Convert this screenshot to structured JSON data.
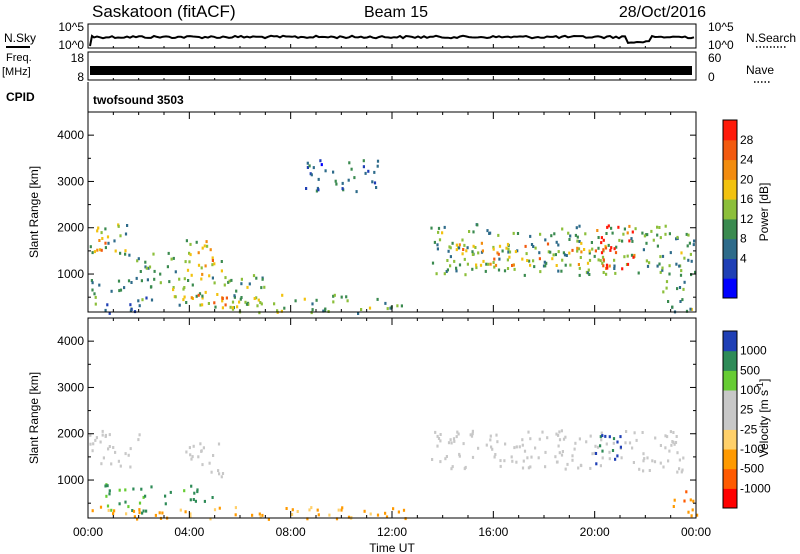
{
  "header": {
    "station": "Saskatoon (fitACF)",
    "beam": "Beam 15",
    "date": "28/Oct/2016"
  },
  "strips": {
    "nsky_label": "N.Sky",
    "nsky_ticks": [
      "10^5",
      "10^0"
    ],
    "nsearch_label": "N.Search",
    "nsearch_ticks": [
      "10^5",
      "10^0"
    ],
    "freq_label_line1": "Freq.",
    "freq_label_line2": "[MHz]",
    "freq_ticks": [
      "18",
      "8"
    ],
    "nave_label": "Nave",
    "nave_ticks": [
      "60",
      "0"
    ],
    "cpid_label": "CPID",
    "cpid_value": "twofsound 3503"
  },
  "chart_data": [
    {
      "type": "heatmap",
      "name": "power",
      "ylabel": "Slant Range [km]",
      "xlabel": "",
      "ylim": [
        180,
        4500
      ],
      "yticks": [
        "1000",
        "2000",
        "3000",
        "4000"
      ],
      "colorbar": {
        "label": "Power [dB]",
        "ticks": [
          "28",
          "24",
          "20",
          "16",
          "12",
          "8",
          "4"
        ],
        "colors": [
          "#0000ff",
          "#1f3fb5",
          "#2e6b8a",
          "#3a8a4f",
          "#8cbf3a",
          "#f2c20f",
          "#f28c0f",
          "#f25a0f",
          "#ff1a0a"
        ],
        "range": [
          0,
          30
        ]
      },
      "regions": [
        {
          "t0": 0.0,
          "t1": 1.6,
          "r0": 1300,
          "r1": 2100,
          "power": 14
        },
        {
          "t0": 0.1,
          "t1": 0.8,
          "r0": 1500,
          "r1": 1900,
          "power": 22
        },
        {
          "t0": 0.0,
          "t1": 2.5,
          "r0": 180,
          "r1": 900,
          "power": 10
        },
        {
          "t0": 1.5,
          "t1": 3.5,
          "r0": 900,
          "r1": 1500,
          "power": 12
        },
        {
          "t0": 3.8,
          "t1": 5.3,
          "r0": 1000,
          "r1": 1800,
          "power": 16
        },
        {
          "t0": 4.0,
          "t1": 5.0,
          "r0": 1200,
          "r1": 1500,
          "power": 22
        },
        {
          "t0": 2.5,
          "t1": 7.0,
          "r0": 300,
          "r1": 1000,
          "power": 14
        },
        {
          "t0": 3.5,
          "t1": 5.5,
          "r0": 300,
          "r1": 600,
          "power": 22
        },
        {
          "t0": 5.5,
          "t1": 12.5,
          "r0": 180,
          "r1": 600,
          "power": 14
        },
        {
          "t0": 8.5,
          "t1": 11.5,
          "r0": 2800,
          "r1": 3500,
          "power": 8
        },
        {
          "t0": 13.5,
          "t1": 22.8,
          "r0": 1000,
          "r1": 2100,
          "power": 12
        },
        {
          "t0": 14.5,
          "t1": 20.5,
          "r0": 1150,
          "r1": 1700,
          "power": 20
        },
        {
          "t0": 20.0,
          "t1": 21.6,
          "r0": 1100,
          "r1": 2100,
          "power": 27
        },
        {
          "t0": 22.5,
          "t1": 24.0,
          "r0": 180,
          "r1": 2000,
          "power": 12
        }
      ]
    },
    {
      "type": "heatmap",
      "name": "velocity",
      "ylabel": "Slant Range [km]",
      "xlabel": "Time UT",
      "ylim": [
        180,
        4500
      ],
      "yticks": [
        "1000",
        "2000",
        "3000",
        "4000"
      ],
      "xticks": [
        "00:00",
        "04:00",
        "08:00",
        "12:00",
        "16:00",
        "20:00",
        "00:00"
      ],
      "colorbar": {
        "label": "Velocity [m s^-1]",
        "ticks": [
          "1000",
          "500",
          "100",
          "25",
          "-25",
          "-100",
          "-500",
          "-1000"
        ],
        "colors": [
          "#ff0000",
          "#ff5a00",
          "#ff9a00",
          "#ffd06a",
          "#c8c8c8",
          "#c8c8c8",
          "#66cc33",
          "#2e8b57",
          "#1f3fb5"
        ]
      },
      "regions": [
        {
          "t0": 0.0,
          "t1": 2.0,
          "r0": 1300,
          "r1": 2100,
          "velocity": 0
        },
        {
          "t0": 3.8,
          "t1": 5.3,
          "r0": 1100,
          "r1": 1900,
          "velocity": 0
        },
        {
          "t0": 0.5,
          "t1": 2.5,
          "r0": 300,
          "r1": 1000,
          "velocity": 120
        },
        {
          "t0": 3.0,
          "t1": 5.0,
          "r0": 500,
          "r1": 900,
          "velocity": 200
        },
        {
          "t0": 0.0,
          "t1": 12.5,
          "r0": 180,
          "r1": 450,
          "velocity": -150
        },
        {
          "t0": 13.5,
          "t1": 23.5,
          "r0": 1200,
          "r1": 2100,
          "velocity": 0
        },
        {
          "t0": 20.0,
          "t1": 21.3,
          "r0": 1300,
          "r1": 2000,
          "velocity": 500
        },
        {
          "t0": 23.0,
          "t1": 24.0,
          "r0": 180,
          "r1": 800,
          "velocity": -400
        }
      ]
    }
  ]
}
